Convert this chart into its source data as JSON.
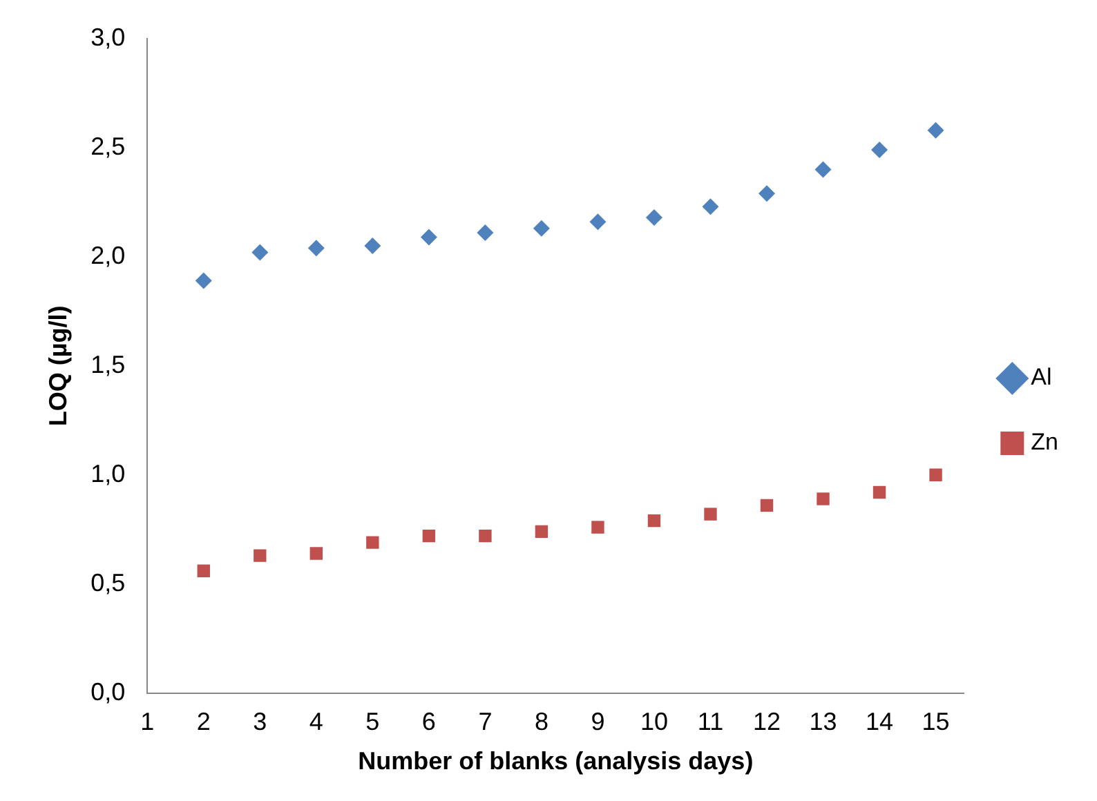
{
  "chart_data": {
    "type": "scatter",
    "xlabel": "Number of blanks (analysis days)",
    "ylabel": "LOQ (µg/l)",
    "x": [
      2,
      3,
      4,
      5,
      6,
      7,
      8,
      9,
      10,
      11,
      12,
      13,
      14,
      15
    ],
    "series": [
      {
        "name": "Al",
        "color": "#4f81bd",
        "marker": "diamond",
        "values": [
          1.89,
          2.02,
          2.04,
          2.05,
          2.09,
          2.11,
          2.13,
          2.16,
          2.18,
          2.23,
          2.29,
          2.4,
          2.49,
          2.58
        ]
      },
      {
        "name": "Zn",
        "color": "#c0504d",
        "marker": "square",
        "values": [
          0.56,
          0.63,
          0.64,
          0.69,
          0.72,
          0.72,
          0.74,
          0.76,
          0.79,
          0.82,
          0.86,
          0.89,
          0.92,
          1.0
        ]
      }
    ],
    "xlim": [
      1,
      15.5
    ],
    "xticks": [
      1,
      2,
      3,
      4,
      5,
      6,
      7,
      8,
      9,
      10,
      11,
      12,
      13,
      14,
      15
    ],
    "ylim": [
      0,
      3
    ],
    "yticks": [
      {
        "value": 0,
        "label": "0,0"
      },
      {
        "value": 0.5,
        "label": "0,5"
      },
      {
        "value": 1,
        "label": "1,0"
      },
      {
        "value": 1.5,
        "label": "1,5"
      },
      {
        "value": 2,
        "label": "2,0"
      },
      {
        "value": 2.5,
        "label": "2,5"
      },
      {
        "value": 3,
        "label": "3,0"
      }
    ],
    "grid": false,
    "legend": "right"
  }
}
